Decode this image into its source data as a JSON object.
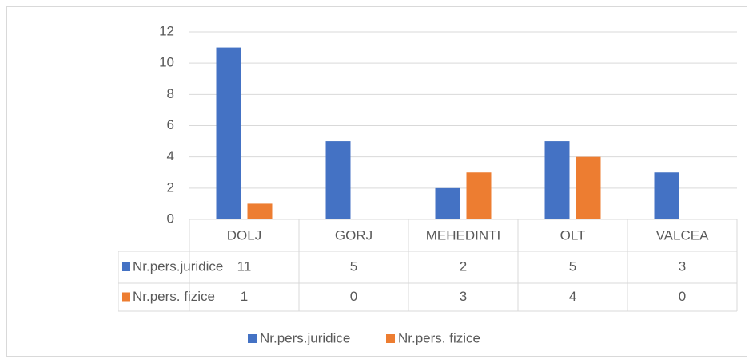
{
  "chart_data": {
    "type": "bar",
    "categories": [
      "DOLJ",
      "GORJ",
      "MEHEDINTI",
      "OLT",
      "VALCEA"
    ],
    "series": [
      {
        "name": "Nr.pers.juridice",
        "color": "#4472c4",
        "values": [
          11,
          5,
          2,
          5,
          3
        ]
      },
      {
        "name": "Nr.pers. fizice",
        "color": "#ed7d31",
        "values": [
          1,
          0,
          3,
          4,
          0
        ]
      }
    ],
    "ylim": [
      0,
      12
    ],
    "yticks": [
      0,
      2,
      4,
      6,
      8,
      10,
      12
    ],
    "grid": true,
    "data_table": true,
    "legend": "bottom"
  }
}
